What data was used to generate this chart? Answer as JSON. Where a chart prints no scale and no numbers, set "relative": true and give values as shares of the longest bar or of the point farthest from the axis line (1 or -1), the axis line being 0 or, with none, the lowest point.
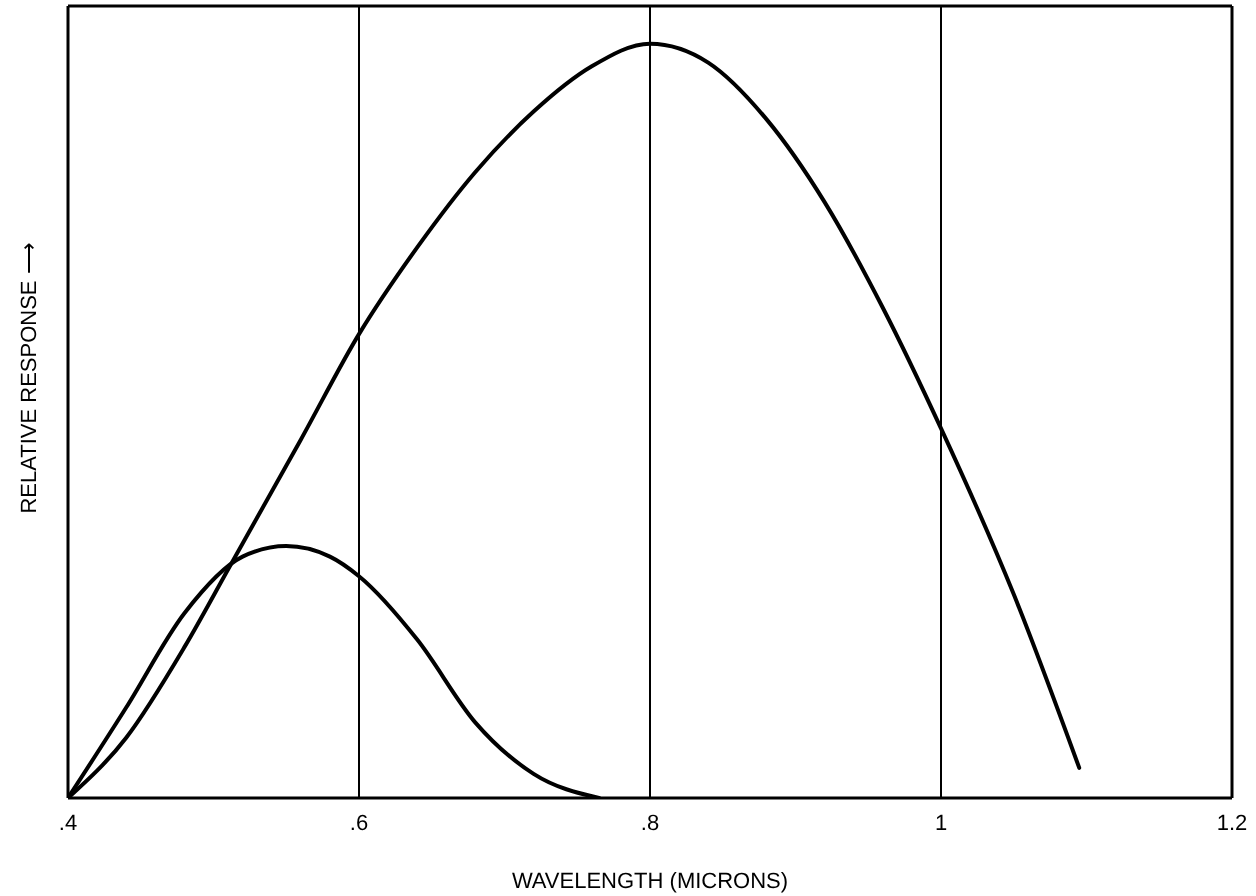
{
  "chart_data": {
    "type": "line",
    "xlabel": "WAVELENGTH (MICRONS)",
    "ylabel": "RELATIVE RESPONSE ⟶",
    "relative": true,
    "xlim": [
      0.4,
      1.2
    ],
    "xticks": [
      {
        "value": 0.4,
        "label": ".4"
      },
      {
        "value": 0.6,
        "label": ".6"
      },
      {
        "value": 0.8,
        "label": ".8"
      },
      1,
      1.2
    ],
    "grid": "x",
    "series": [
      {
        "color": "#000000",
        "x": [
          0.4,
          0.44,
          0.48,
          0.512,
          0.56,
          0.6,
          0.64,
          0.68,
          0.72,
          0.76,
          0.8,
          0.84,
          0.88,
          0.92,
          0.96,
          1.0,
          1.05,
          1.095
        ],
        "values": [
          0,
          0.08,
          0.2,
          0.31,
          0.475,
          0.615,
          0.73,
          0.83,
          0.91,
          0.97,
          1,
          0.975,
          0.9,
          0.79,
          0.65,
          0.49,
          0.27,
          0.04
        ]
      },
      {
        "color": "#000000",
        "x": [
          0.4,
          0.44,
          0.48,
          0.52,
          0.55,
          0.58,
          0.6,
          0.64,
          0.68,
          0.72,
          0.765
        ],
        "values": [
          0,
          0.12,
          0.245,
          0.32,
          0.334,
          0.32,
          0.294,
          0.21,
          0.1,
          0.032,
          0
        ]
      }
    ]
  }
}
